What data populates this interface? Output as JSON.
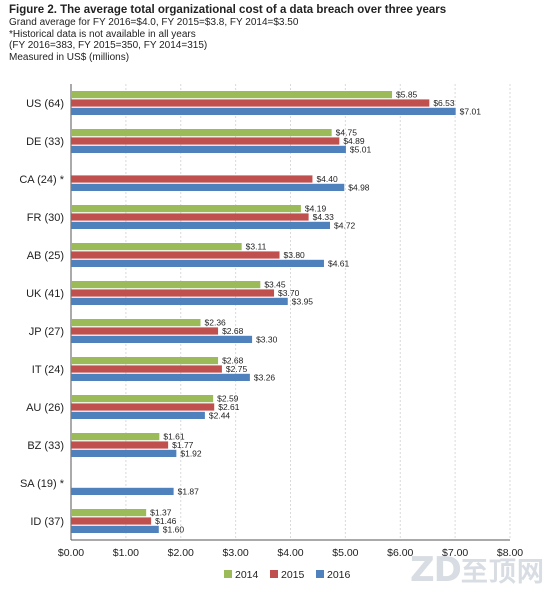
{
  "header": {
    "title": "Figure 2. The average total organizational cost of a data breach over three years",
    "notes": [
      "Grand average for FY 2016=$4.0, FY 2015=$3.8, FY 2014=$3.50",
      "*Historical data is not available in all years",
      "(FY 2016=383, FY 2015=350, FY 2014=315)",
      "Measured in US$ (millions)"
    ]
  },
  "watermark": {
    "latin": "ZD",
    "cn": "至顶网"
  },
  "chart_data": {
    "type": "bar",
    "orientation": "horizontal",
    "categories": [
      "US (64)",
      "DE (33)",
      "CA (24) *",
      "FR (30)",
      "AB (25)",
      "UK (41)",
      "JP (27)",
      "IT (24)",
      "AU (26)",
      "BZ (33)",
      "SA (19) *",
      "ID (37)"
    ],
    "series": [
      {
        "name": "2014",
        "color": "#9bbb59",
        "values": [
          5.85,
          4.75,
          null,
          4.19,
          3.11,
          3.45,
          2.36,
          2.68,
          2.59,
          1.61,
          null,
          1.37
        ],
        "labels": [
          "$5.85",
          "$4.75",
          "",
          "$4.19",
          "$3.11",
          "$3.45",
          "$2.36",
          "$2.68",
          "$2.59",
          "$1.61",
          "",
          "$1.37"
        ]
      },
      {
        "name": "2015",
        "color": "#c0504d",
        "values": [
          6.53,
          4.89,
          4.4,
          4.33,
          3.8,
          3.7,
          2.68,
          2.75,
          2.61,
          1.77,
          null,
          1.46
        ],
        "labels": [
          "$6.53",
          "$4.89",
          "$4.40",
          "$4.33",
          "$3.80",
          "$3.70",
          "$2.68",
          "$2.75",
          "$2.61",
          "$1.77",
          "",
          "$1.46"
        ]
      },
      {
        "name": "2016",
        "color": "#4f81bd",
        "values": [
          7.01,
          5.01,
          4.98,
          4.72,
          4.61,
          3.95,
          3.3,
          3.26,
          2.44,
          1.92,
          1.87,
          1.6
        ],
        "labels": [
          "$7.01",
          "$5.01",
          "$4.98",
          "$4.72",
          "$4.61",
          "$3.95",
          "$3.30",
          "$3.26",
          "$2.44",
          "$1.92",
          "$1.87",
          "$1.60"
        ]
      }
    ],
    "xlim": [
      0,
      8
    ],
    "xticks": [
      0,
      1,
      2,
      3,
      4,
      5,
      6,
      7,
      8
    ],
    "xtick_labels": [
      "$0.00",
      "$1.00",
      "$2.00",
      "$3.00",
      "$4.00",
      "$5.00",
      "$6.00",
      "$7.00",
      "$8.00"
    ],
    "grid": true,
    "legend": "bottom"
  }
}
